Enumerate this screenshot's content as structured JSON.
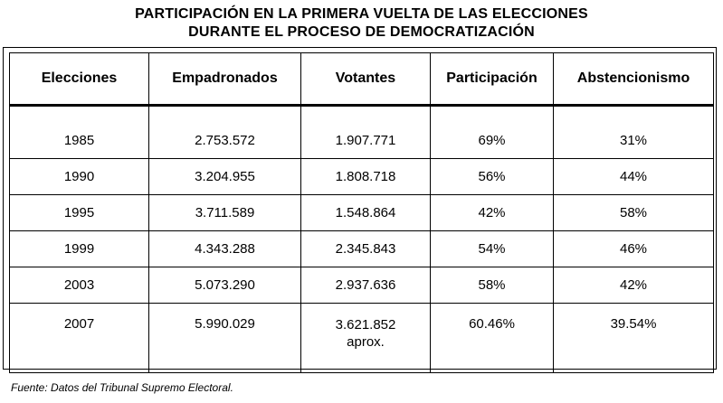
{
  "title": {
    "line1": "PARTICIPACIÓN EN LA PRIMERA VUELTA DE LAS ELECCIONES",
    "line2": "DURANTE EL PROCESO DE DEMOCRATIZACIÓN"
  },
  "table": {
    "headers": [
      "Elecciones",
      "Empadronados",
      "Votantes",
      "Participación",
      "Abstencionismo"
    ],
    "rows": [
      [
        "1985",
        "2.753.572",
        "1.907.771",
        "69%",
        "31%"
      ],
      [
        "1990",
        "3.204.955",
        "1.808.718",
        "56%",
        "44%"
      ],
      [
        "1995",
        "3.711.589",
        "1.548.864",
        "42%",
        "58%"
      ],
      [
        "1999",
        "4.343.288",
        "2.345.843",
        "54%",
        "46%"
      ],
      [
        "2003",
        "5.073.290",
        "2.937.636",
        "58%",
        "42%"
      ],
      [
        "2007",
        "5.990.029",
        "3.621.852",
        "60.46%",
        "39.54%"
      ]
    ],
    "note_2007_votantes": "aprox."
  },
  "source": "Fuente: Datos del Tribunal Supremo Electoral."
}
